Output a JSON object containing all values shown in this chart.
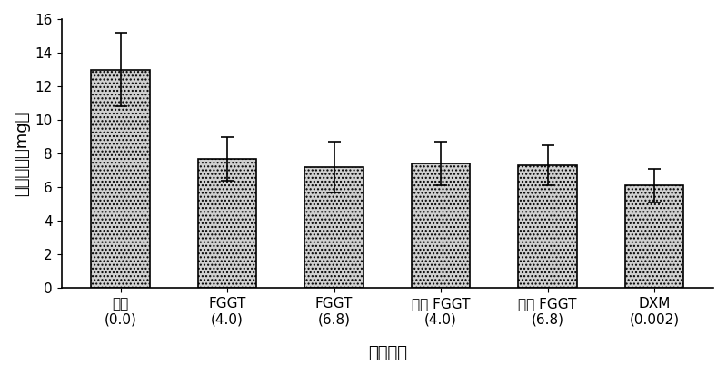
{
  "categories": [
    "对照\n(0.0)",
    "FGGT\n(4.0)",
    "FGGT\n(6.8)",
    "发酵 FGGT\n(4.0)",
    "发酵 FGGT\n(6.8)",
    "DXM\n(0.002)"
  ],
  "values": [
    13.0,
    7.7,
    7.2,
    7.4,
    7.3,
    6.1
  ],
  "errors": [
    2.2,
    1.3,
    1.5,
    1.3,
    1.2,
    1.0
  ],
  "ylabel": "耳肿胀度（mg）",
  "xlabel": "不同处理",
  "ylim": [
    0,
    16
  ],
  "yticks": [
    0,
    2,
    4,
    6,
    8,
    10,
    12,
    14,
    16
  ],
  "bar_color": "#d0d0d0",
  "bar_edgecolor": "#000000",
  "background_color": "#ffffff",
  "title_fontsize": 13,
  "label_fontsize": 13,
  "tick_fontsize": 11
}
